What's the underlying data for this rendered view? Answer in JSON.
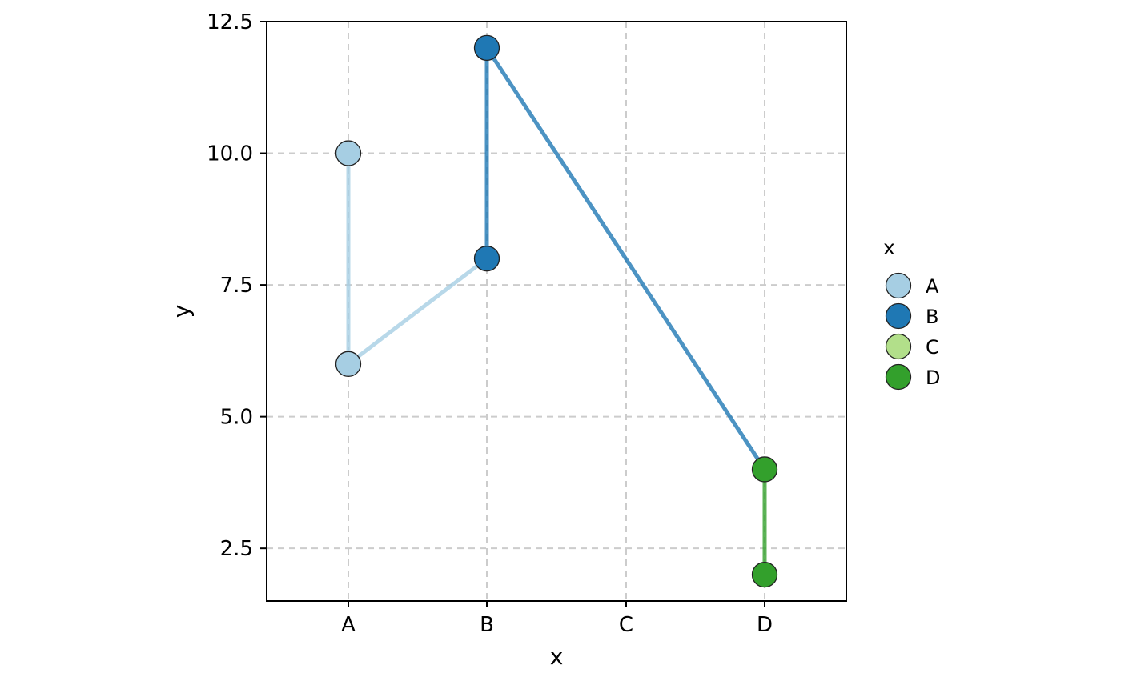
{
  "chart_data": {
    "type": "line",
    "title": "",
    "xlabel": "x",
    "ylabel": "y",
    "categories": [
      "A",
      "B",
      "C",
      "D"
    ],
    "ylim": [
      1.5,
      12.5
    ],
    "y_ticks": [
      "2.5",
      "5.0",
      "7.5",
      "10.0",
      "12.5"
    ],
    "grid": true,
    "legend_placement": "right",
    "legend": {
      "title": "x",
      "entries": [
        {
          "label": "A",
          "color": "#a6cee3"
        },
        {
          "label": "B",
          "color": "#1f78b4"
        },
        {
          "label": "C",
          "color": "#b2df8a"
        },
        {
          "label": "D",
          "color": "#33a02c"
        }
      ]
    },
    "path_points": [
      {
        "x": "A",
        "y": 10
      },
      {
        "x": "A",
        "y": 6
      },
      {
        "x": "B",
        "y": 8
      },
      {
        "x": "B",
        "y": 12
      },
      {
        "x": "D",
        "y": 4
      },
      {
        "x": "D",
        "y": 2
      }
    ]
  }
}
